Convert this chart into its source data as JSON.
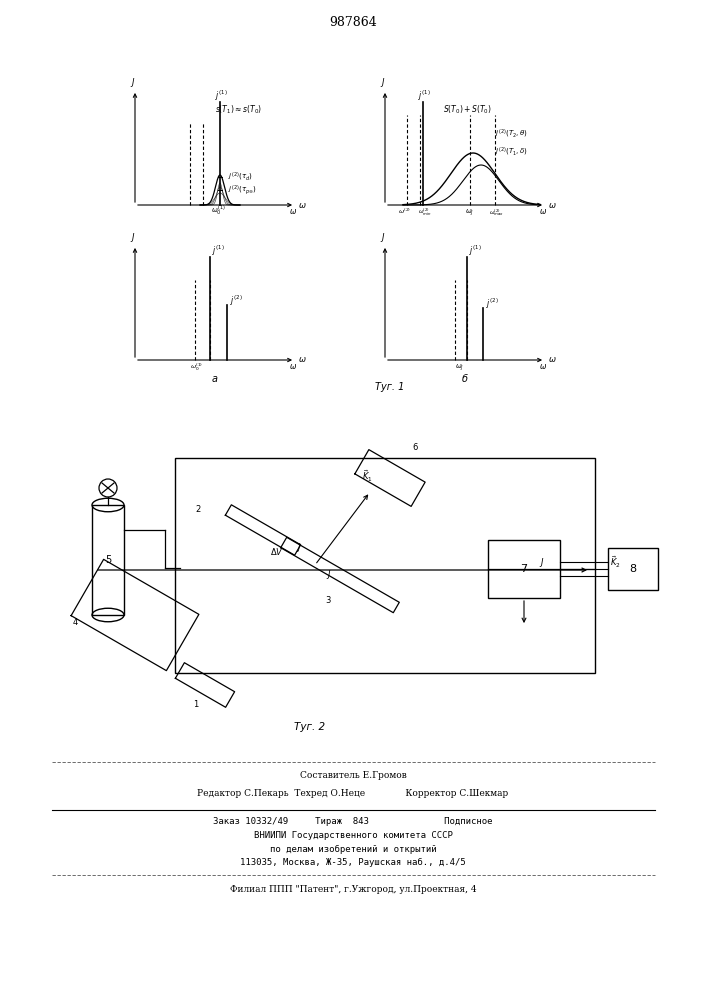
{
  "title": "987864",
  "background_color": "#ffffff",
  "text_color": "#000000",
  "line_color": "#000000",
  "fig1_label": "Τуг. 1",
  "fig2_label": "Τуг. 2",
  "footer_line1": "Составитель Е.Громов",
  "footer_line2": "Редактор С.Пекарь  Техред О.Неце              Корректор С.Шекмар",
  "footer_line3": "Заказ 10332/49     Тираж  843              Подписное",
  "footer_line4": "ВНИИПИ Государственного комитета СССР",
  "footer_line5": "по делам изобретений и открытий",
  "footer_line6": "113035, Москва, Ж-35, Раушская наб., д.4/5",
  "footer_line7": "Филиал ППП \"Патент\", г.Ужгород, ул.Проектная, 4"
}
